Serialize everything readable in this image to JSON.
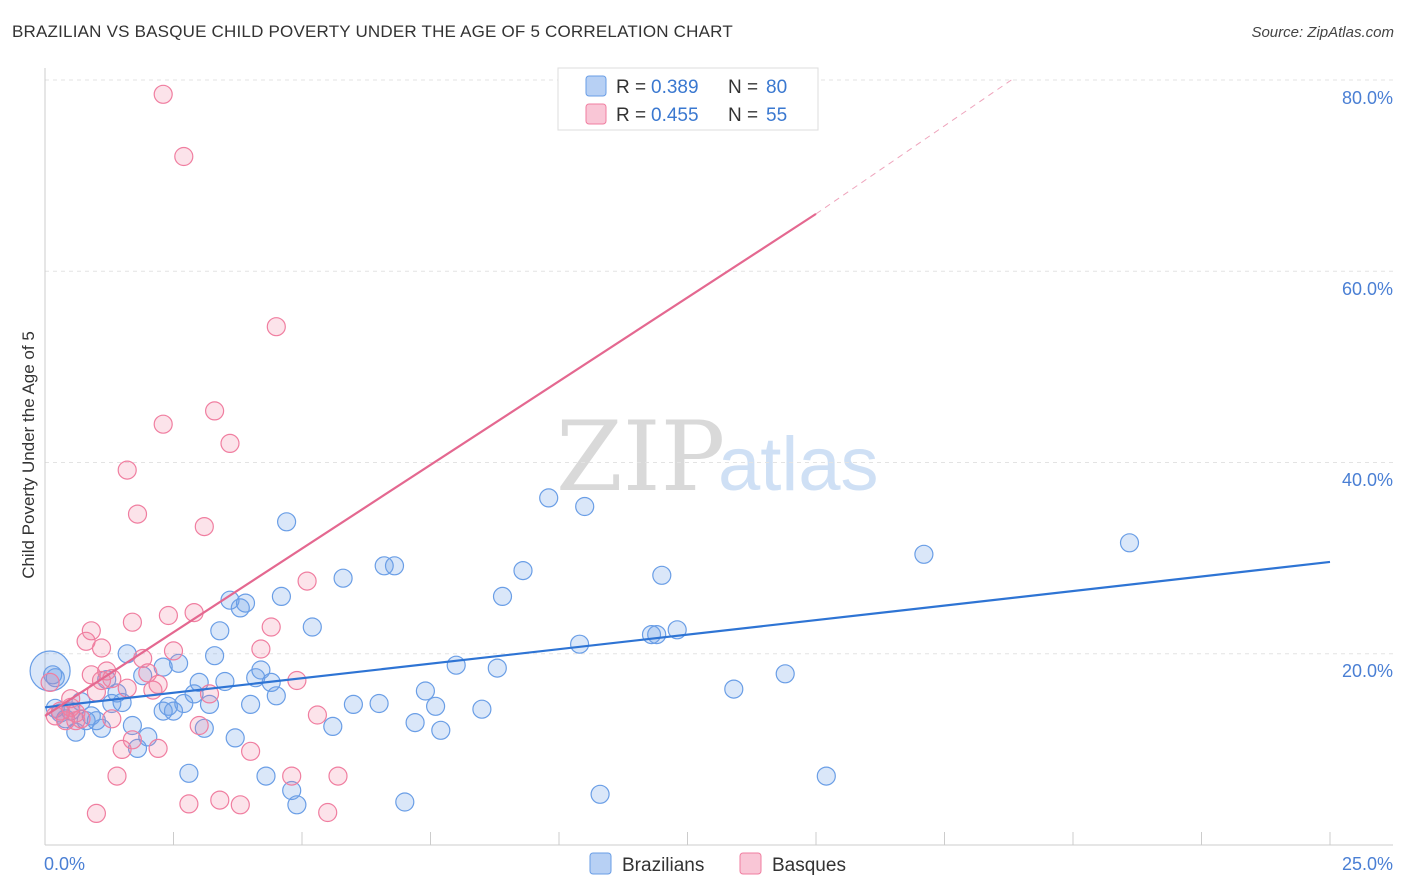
{
  "title": "BRAZILIAN VS BASQUE CHILD POVERTY UNDER THE AGE OF 5 CORRELATION CHART",
  "source": "Source: ZipAtlas.com",
  "watermark": {
    "zip": "ZIP",
    "atlas": "atlas"
  },
  "colors": {
    "blue": "#6a9ee6",
    "pink": "#f07ea0",
    "blue_line": "#2e74d4",
    "pink_line": "#e46890"
  },
  "chart_data": {
    "type": "scatter",
    "title": "BRAZILIAN VS BASQUE CHILD POVERTY UNDER THE AGE OF 5 CORRELATION CHART",
    "xlabel": "",
    "ylabel": "Child Poverty Under the Age of 5",
    "xlim": [
      0,
      25
    ],
    "ylim": [
      0,
      80
    ],
    "x_tick_labels": [
      "0.0%",
      "25.0%"
    ],
    "y_tick_labels": [
      "20.0%",
      "40.0%",
      "60.0%",
      "80.0%"
    ],
    "y_ticks": [
      20,
      40,
      60,
      80
    ],
    "legend": [
      {
        "r_label": "R =",
        "r": "0.389",
        "n_label": "N =",
        "n": "80"
      },
      {
        "r_label": "R =",
        "r": "0.455",
        "n_label": "N =",
        "n": "55"
      }
    ],
    "series": [
      {
        "name": "Brazilians",
        "color": "#6a9ee6",
        "points": [
          [
            0.1,
            18.2
          ],
          [
            0.2,
            17.5
          ],
          [
            0.2,
            14.3
          ],
          [
            0.3,
            13.8
          ],
          [
            0.4,
            13.2
          ],
          [
            0.5,
            14.0
          ],
          [
            0.6,
            11.8
          ],
          [
            0.7,
            15.0
          ],
          [
            0.8,
            13.0
          ],
          [
            0.9,
            13.5
          ],
          [
            1.0,
            13.0
          ],
          [
            1.1,
            12.2
          ],
          [
            1.2,
            17.3
          ],
          [
            1.3,
            14.8
          ],
          [
            1.4,
            15.9
          ],
          [
            1.5,
            14.9
          ],
          [
            1.6,
            20.0
          ],
          [
            1.7,
            12.5
          ],
          [
            1.8,
            10.1
          ],
          [
            1.9,
            17.7
          ],
          [
            2.0,
            11.3
          ],
          [
            2.3,
            18.6
          ],
          [
            2.4,
            14.5
          ],
          [
            2.5,
            14.0
          ],
          [
            2.6,
            19.0
          ],
          [
            2.7,
            14.8
          ],
          [
            2.8,
            7.5
          ],
          [
            2.9,
            15.8
          ],
          [
            3.0,
            17.0
          ],
          [
            3.1,
            12.2
          ],
          [
            3.2,
            14.7
          ],
          [
            3.3,
            19.8
          ],
          [
            3.4,
            22.4
          ],
          [
            3.5,
            17.1
          ],
          [
            3.6,
            25.6
          ],
          [
            3.7,
            11.2
          ],
          [
            3.8,
            24.8
          ],
          [
            3.9,
            25.3
          ],
          [
            4.0,
            14.7
          ],
          [
            4.1,
            17.5
          ],
          [
            4.2,
            18.3
          ],
          [
            4.3,
            7.2
          ],
          [
            4.4,
            17.0
          ],
          [
            4.5,
            15.6
          ],
          [
            4.6,
            26.0
          ],
          [
            4.7,
            33.8
          ],
          [
            4.8,
            5.7
          ],
          [
            4.9,
            4.2
          ],
          [
            5.2,
            22.8
          ],
          [
            5.6,
            12.4
          ],
          [
            5.8,
            27.9
          ],
          [
            6.0,
            14.7
          ],
          [
            6.5,
            14.8
          ],
          [
            6.6,
            29.2
          ],
          [
            6.8,
            29.2
          ],
          [
            7.0,
            4.5
          ],
          [
            7.2,
            12.8
          ],
          [
            7.4,
            16.1
          ],
          [
            7.6,
            14.5
          ],
          [
            7.7,
            12.0
          ],
          [
            8.0,
            18.8
          ],
          [
            8.5,
            14.2
          ],
          [
            8.8,
            18.5
          ],
          [
            8.9,
            26.0
          ],
          [
            9.3,
            28.7
          ],
          [
            9.8,
            36.3
          ],
          [
            10.4,
            21.0
          ],
          [
            10.5,
            35.4
          ],
          [
            10.8,
            5.3
          ],
          [
            11.8,
            22.0
          ],
          [
            11.9,
            22.0
          ],
          [
            12.0,
            28.2
          ],
          [
            12.3,
            22.5
          ],
          [
            13.4,
            16.3
          ],
          [
            14.4,
            17.9
          ],
          [
            15.2,
            7.2
          ],
          [
            17.1,
            30.4
          ],
          [
            21.1,
            31.6
          ],
          [
            0.15,
            17.8
          ],
          [
            2.3,
            14.0
          ]
        ]
      },
      {
        "name": "Basques",
        "color": "#f07ea0",
        "points": [
          [
            0.1,
            17.0
          ],
          [
            0.2,
            13.5
          ],
          [
            0.3,
            14.0
          ],
          [
            0.4,
            13.0
          ],
          [
            0.5,
            15.3
          ],
          [
            0.6,
            13.8
          ],
          [
            0.7,
            13.2
          ],
          [
            0.8,
            21.3
          ],
          [
            0.9,
            22.4
          ],
          [
            1.0,
            16.0
          ],
          [
            1.0,
            3.3
          ],
          [
            1.1,
            17.2
          ],
          [
            1.2,
            18.2
          ],
          [
            1.3,
            17.4
          ],
          [
            1.4,
            7.2
          ],
          [
            1.5,
            10.0
          ],
          [
            1.6,
            16.4
          ],
          [
            1.6,
            39.2
          ],
          [
            1.7,
            23.3
          ],
          [
            1.7,
            11.0
          ],
          [
            1.8,
            34.6
          ],
          [
            1.9,
            19.5
          ],
          [
            2.0,
            18.0
          ],
          [
            2.1,
            16.2
          ],
          [
            2.2,
            10.1
          ],
          [
            2.3,
            44.0
          ],
          [
            2.4,
            24.0
          ],
          [
            2.5,
            20.3
          ],
          [
            2.7,
            72.0
          ],
          [
            2.8,
            4.3
          ],
          [
            2.9,
            24.3
          ],
          [
            3.0,
            12.5
          ],
          [
            3.1,
            33.3
          ],
          [
            3.2,
            15.8
          ],
          [
            3.3,
            45.4
          ],
          [
            3.4,
            4.7
          ],
          [
            3.6,
            42.0
          ],
          [
            3.8,
            4.2
          ],
          [
            4.0,
            9.8
          ],
          [
            4.2,
            20.5
          ],
          [
            4.4,
            22.8
          ],
          [
            4.5,
            54.2
          ],
          [
            4.8,
            7.2
          ],
          [
            4.9,
            17.2
          ],
          [
            5.1,
            27.6
          ],
          [
            5.3,
            13.6
          ],
          [
            5.5,
            3.4
          ],
          [
            5.7,
            7.2
          ],
          [
            2.3,
            78.5
          ],
          [
            0.6,
            13.0
          ],
          [
            1.3,
            13.2
          ],
          [
            0.9,
            17.8
          ],
          [
            0.5,
            14.4
          ],
          [
            1.1,
            20.6
          ],
          [
            2.2,
            16.8
          ]
        ]
      }
    ],
    "trend_lines": [
      {
        "series": "Brazilians",
        "x0": 0,
        "y0": 14.4,
        "x1": 25,
        "y1": 29.6,
        "dashed_to": null
      },
      {
        "series": "Basques",
        "x0": 0,
        "y0": 13.5,
        "x1": 15.0,
        "y1": 66.0,
        "dashed_x1": 18.8,
        "dashed_y1": 80.0
      }
    ]
  },
  "bottom_legend": [
    {
      "label": "Brazilians"
    },
    {
      "label": "Basques"
    }
  ]
}
